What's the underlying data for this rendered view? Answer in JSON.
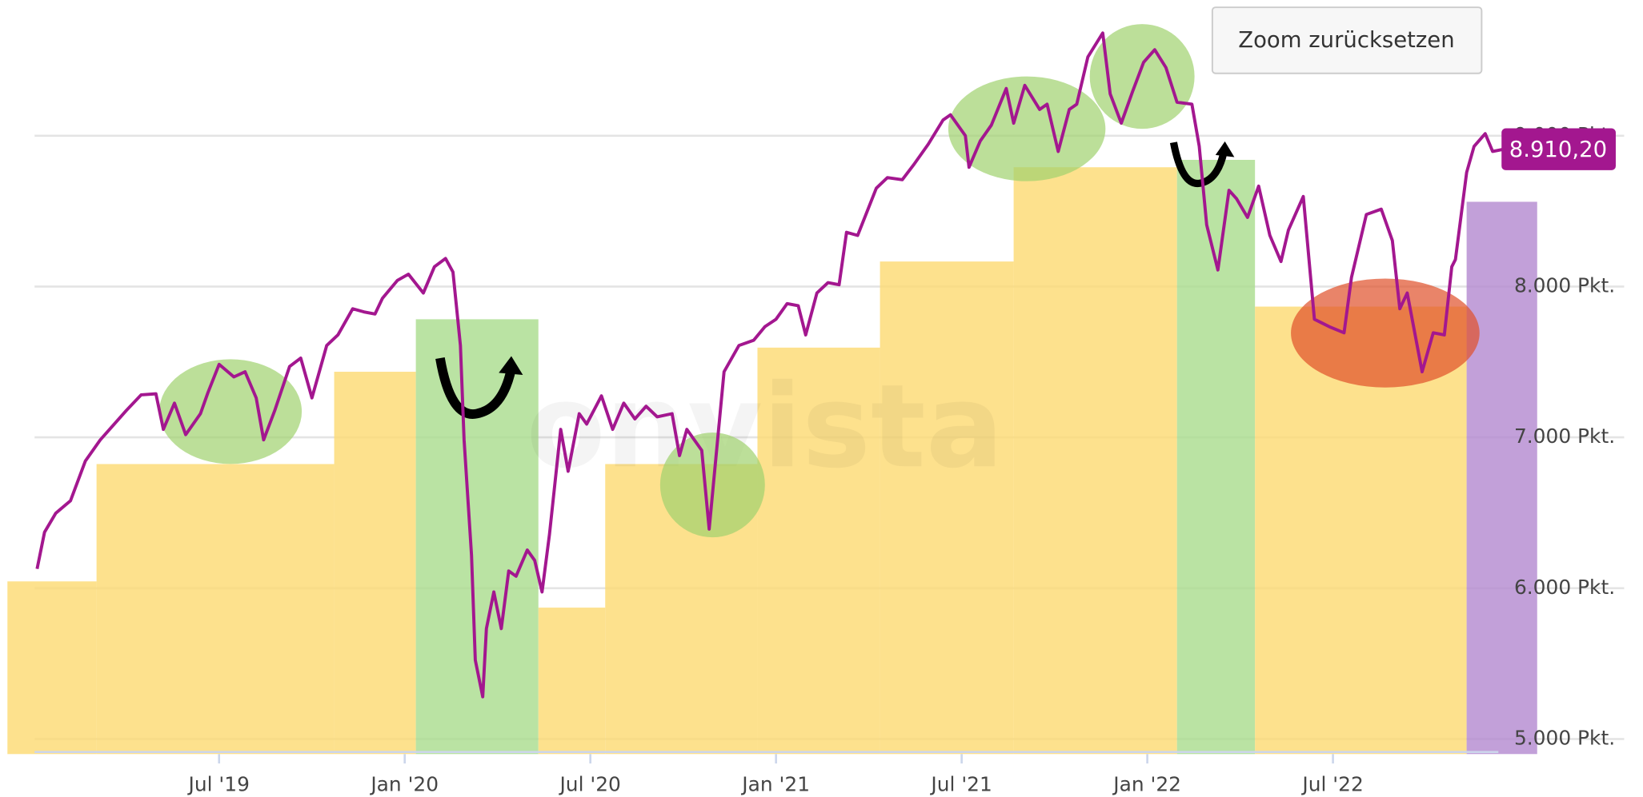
{
  "chart_data": {
    "type": "line",
    "button": "Zoom zurücksetzen",
    "watermark": "onvista",
    "color": "#a3178f",
    "x": [
      2019.01,
      2019.03,
      2019.06,
      2019.1,
      2019.14,
      2019.18,
      2019.21,
      2019.25,
      2019.29,
      2019.33,
      2019.35,
      2019.38,
      2019.41,
      2019.45,
      2019.47,
      2019.5,
      2019.54,
      2019.57,
      2019.6,
      2019.62,
      2019.65,
      2019.69,
      2019.72,
      2019.75,
      2019.79,
      2019.82,
      2019.86,
      2019.89,
      2019.92,
      2019.94,
      2019.98,
      2020.01,
      2020.05,
      2020.08,
      2020.11,
      2020.13,
      2020.15,
      2020.16,
      2020.18,
      2020.19,
      2020.21,
      2020.22,
      2020.24,
      2020.26,
      2020.28,
      2020.3,
      2020.33,
      2020.35,
      2020.37,
      2020.39,
      2020.42,
      2020.44,
      2020.47,
      2020.49,
      2020.53,
      2020.56,
      2020.59,
      2020.62,
      2020.65,
      2020.68,
      2020.72,
      2020.74,
      2020.76,
      2020.8,
      2020.82,
      2020.84,
      2020.86,
      2020.9,
      2020.94,
      2020.97,
      2021.0,
      2021.03,
      2021.06,
      2021.08,
      2021.11,
      2021.14,
      2021.17,
      2021.19,
      2021.22,
      2021.27,
      2021.3,
      2021.34,
      2021.37,
      2021.41,
      2021.45,
      2021.47,
      2021.51,
      2021.52,
      2021.55,
      2021.58,
      2021.62,
      2021.64,
      2021.67,
      2021.71,
      2021.73,
      2021.76,
      2021.79,
      2021.81,
      2021.84,
      2021.88,
      2021.9,
      2021.93,
      2021.96,
      2021.99,
      2022.02,
      2022.05,
      2022.08,
      2022.12,
      2022.14,
      2022.16,
      2022.19,
      2022.22,
      2022.24,
      2022.27,
      2022.3,
      2022.33,
      2022.36,
      2022.38,
      2022.42,
      2022.45,
      2022.49,
      2022.53,
      2022.55,
      2022.59,
      2022.63,
      2022.66,
      2022.68,
      2022.7,
      2022.74,
      2022.77,
      2022.8,
      2022.82,
      2022.83,
      2022.86,
      2022.88,
      2022.91,
      2022.93,
      2022.96
    ],
    "values": [
      6128,
      6371,
      6497,
      6580,
      6844,
      6983,
      7067,
      7178,
      7282,
      7289,
      7053,
      7227,
      7018,
      7157,
      7296,
      7484,
      7401,
      7435,
      7262,
      6983,
      7178,
      7470,
      7526,
      7262,
      7609,
      7679,
      7853,
      7832,
      7818,
      7922,
      8040,
      8082,
      7957,
      8131,
      8186,
      8096,
      7609,
      6983,
      6218,
      5523,
      5280,
      5732,
      5975,
      5732,
      6114,
      6079,
      6253,
      6184,
      5975,
      6357,
      7053,
      6775,
      7157,
      7088,
      7275,
      7053,
      7227,
      7122,
      7206,
      7136,
      7157,
      6879,
      7053,
      6914,
      6392,
      6914,
      7435,
      7609,
      7644,
      7734,
      7783,
      7887,
      7873,
      7679,
      7957,
      8026,
      8012,
      8360,
      8339,
      8652,
      8722,
      8708,
      8805,
      8944,
      9104,
      9139,
      9000,
      8791,
      8965,
      9070,
      9313,
      9083,
      9334,
      9174,
      9209,
      8896,
      9174,
      9209,
      9522,
      9681,
      9278,
      9083,
      9292,
      9487,
      9570,
      9452,
      9222,
      9209,
      8930,
      8409,
      8110,
      8638,
      8583,
      8458,
      8666,
      8339,
      8166,
      8374,
      8597,
      7783,
      7734,
      7693,
      8061,
      8478,
      8513,
      8305,
      7853,
      7957,
      7435,
      7693,
      7679,
      8131,
      8179,
      8757,
      8930,
      9014,
      8896,
      8910.2
    ],
    "current_price": {
      "value": 8910.2,
      "label": "8.910,20"
    },
    "xlim": [
      2018.91,
      2023.05
    ],
    "xticks": [
      {
        "value": 2019.5,
        "label": "Jul '19"
      },
      {
        "value": 2020.0,
        "label": "Jan '20"
      },
      {
        "value": 2020.5,
        "label": "Jul '20"
      },
      {
        "value": 2021.0,
        "label": "Jan '21"
      },
      {
        "value": 2021.5,
        "label": "Jul '21"
      },
      {
        "value": 2022.0,
        "label": "Jan '22"
      },
      {
        "value": 2022.5,
        "label": "Jul '22"
      }
    ],
    "ylim": [
      4900,
      9900
    ],
    "yticks": [
      {
        "value": 5000,
        "label": "5.000 Pkt."
      },
      {
        "value": 6000,
        "label": "6.000 Pkt."
      },
      {
        "value": 7000,
        "label": "7.000 Pkt."
      },
      {
        "value": 8000,
        "label": "8.000 Pkt."
      },
      {
        "value": 9000,
        "label": "9.000 Pkt."
      }
    ],
    "grid": true,
    "highlights": [
      {
        "x0": 2018.93,
        "x1": 2019.17,
        "top": 6045,
        "color": "#fcd970"
      },
      {
        "x0": 2019.17,
        "x1": 2019.81,
        "top": 6823,
        "color": "#fcd970"
      },
      {
        "x0": 2019.81,
        "x1": 2020.03,
        "top": 7435,
        "color": "#fcd970"
      },
      {
        "x0": 2020.03,
        "x1": 2020.36,
        "top": 7783,
        "color": "#a9dc8c"
      },
      {
        "x0": 2020.36,
        "x1": 2020.54,
        "top": 5871,
        "color": "#fcd970"
      },
      {
        "x0": 2020.54,
        "x1": 2020.95,
        "top": 6823,
        "color": "#fcd970"
      },
      {
        "x0": 2020.95,
        "x1": 2021.28,
        "top": 7595,
        "color": "#fcd970"
      },
      {
        "x0": 2021.28,
        "x1": 2021.64,
        "top": 8166,
        "color": "#fcd970"
      },
      {
        "x0": 2021.64,
        "x1": 2022.08,
        "top": 8791,
        "color": "#fcd970"
      },
      {
        "x0": 2022.08,
        "x1": 2022.29,
        "top": 8840,
        "color": "#a9dc8c"
      },
      {
        "x0": 2022.29,
        "x1": 2022.86,
        "top": 7867,
        "color": "#fcd970"
      },
      {
        "x0": 2022.86,
        "x1": 2023.05,
        "top": 8562,
        "color": "#b388cf"
      }
    ]
  }
}
